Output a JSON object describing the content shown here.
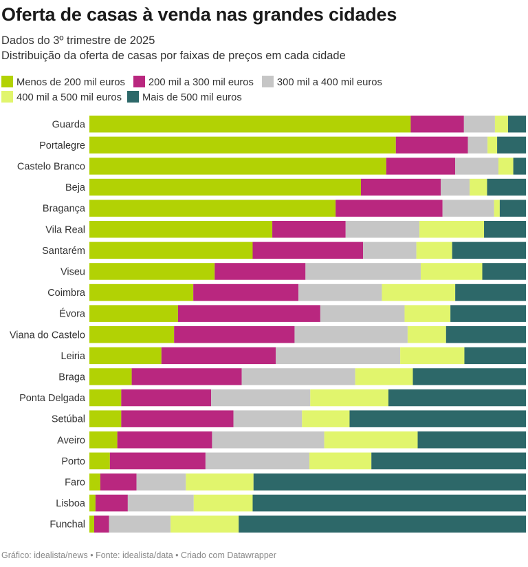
{
  "title": "Oferta de casas à venda nas grandes cidades",
  "subtitle_line1": "Dados do 3º trimestre de 2025",
  "subtitle_line2": "Distribuição da oferta de casas por faixas de preços em cada cidade",
  "footer": "Gráfico: idealista/news • Fonte: idealista/data • Criado com Datawrapper",
  "colors": [
    "#b2d204",
    "#b9277f",
    "#c6c6c6",
    "#e1f56d",
    "#2d6869"
  ],
  "chart_data": {
    "type": "bar",
    "orientation": "horizontal",
    "stacked": true,
    "normalized_percent": true,
    "xlim": [
      0,
      100
    ],
    "categories": [
      "Guarda",
      "Portalegre",
      "Castelo Branco",
      "Beja",
      "Bragança",
      "Vila Real",
      "Santarém",
      "Viseu",
      "Coimbra",
      "Évora",
      "Viana do Castelo",
      "Leiria",
      "Braga",
      "Ponta Delgada",
      "Setúbal",
      "Aveiro",
      "Porto",
      "Faro",
      "Lisboa",
      "Funchal"
    ],
    "series": [
      {
        "name": "Menos de 200 mil euros",
        "values": [
          73.6,
          70.2,
          68.0,
          62.2,
          56.4,
          41.9,
          37.4,
          28.7,
          23.8,
          20.3,
          19.4,
          16.5,
          9.7,
          7.3,
          7.3,
          6.4,
          4.7,
          2.5,
          1.4,
          1.1
        ]
      },
      {
        "name": "200 mil a 300 mil euros",
        "values": [
          12.2,
          16.5,
          15.8,
          18.3,
          24.5,
          16.8,
          25.3,
          20.8,
          24.1,
          32.6,
          27.6,
          26.2,
          25.2,
          20.6,
          25.7,
          21.7,
          21.9,
          8.3,
          7.4,
          3.4
        ]
      },
      {
        "name": "300 mil a 400 mil euros",
        "values": [
          7.1,
          4.5,
          9.9,
          6.6,
          11.8,
          16.9,
          12.2,
          26.4,
          19.1,
          19.3,
          25.9,
          28.5,
          26.0,
          22.7,
          15.7,
          25.7,
          23.8,
          11.3,
          15.1,
          14.1
        ]
      },
      {
        "name": "400 mil a 500 mil euros",
        "values": [
          3.0,
          2.2,
          3.4,
          4.0,
          1.3,
          14.8,
          8.2,
          14.1,
          16.8,
          10.5,
          8.8,
          14.7,
          13.2,
          17.9,
          10.9,
          21.4,
          14.2,
          15.5,
          13.5,
          15.6
        ]
      },
      {
        "name": "Mais de 500 mil euros",
        "values": [
          4.1,
          6.6,
          2.9,
          8.9,
          6.0,
          9.6,
          16.9,
          10.0,
          16.2,
          17.3,
          18.3,
          14.1,
          25.9,
          31.5,
          40.4,
          24.8,
          35.4,
          62.4,
          62.6,
          65.8
        ]
      }
    ]
  }
}
